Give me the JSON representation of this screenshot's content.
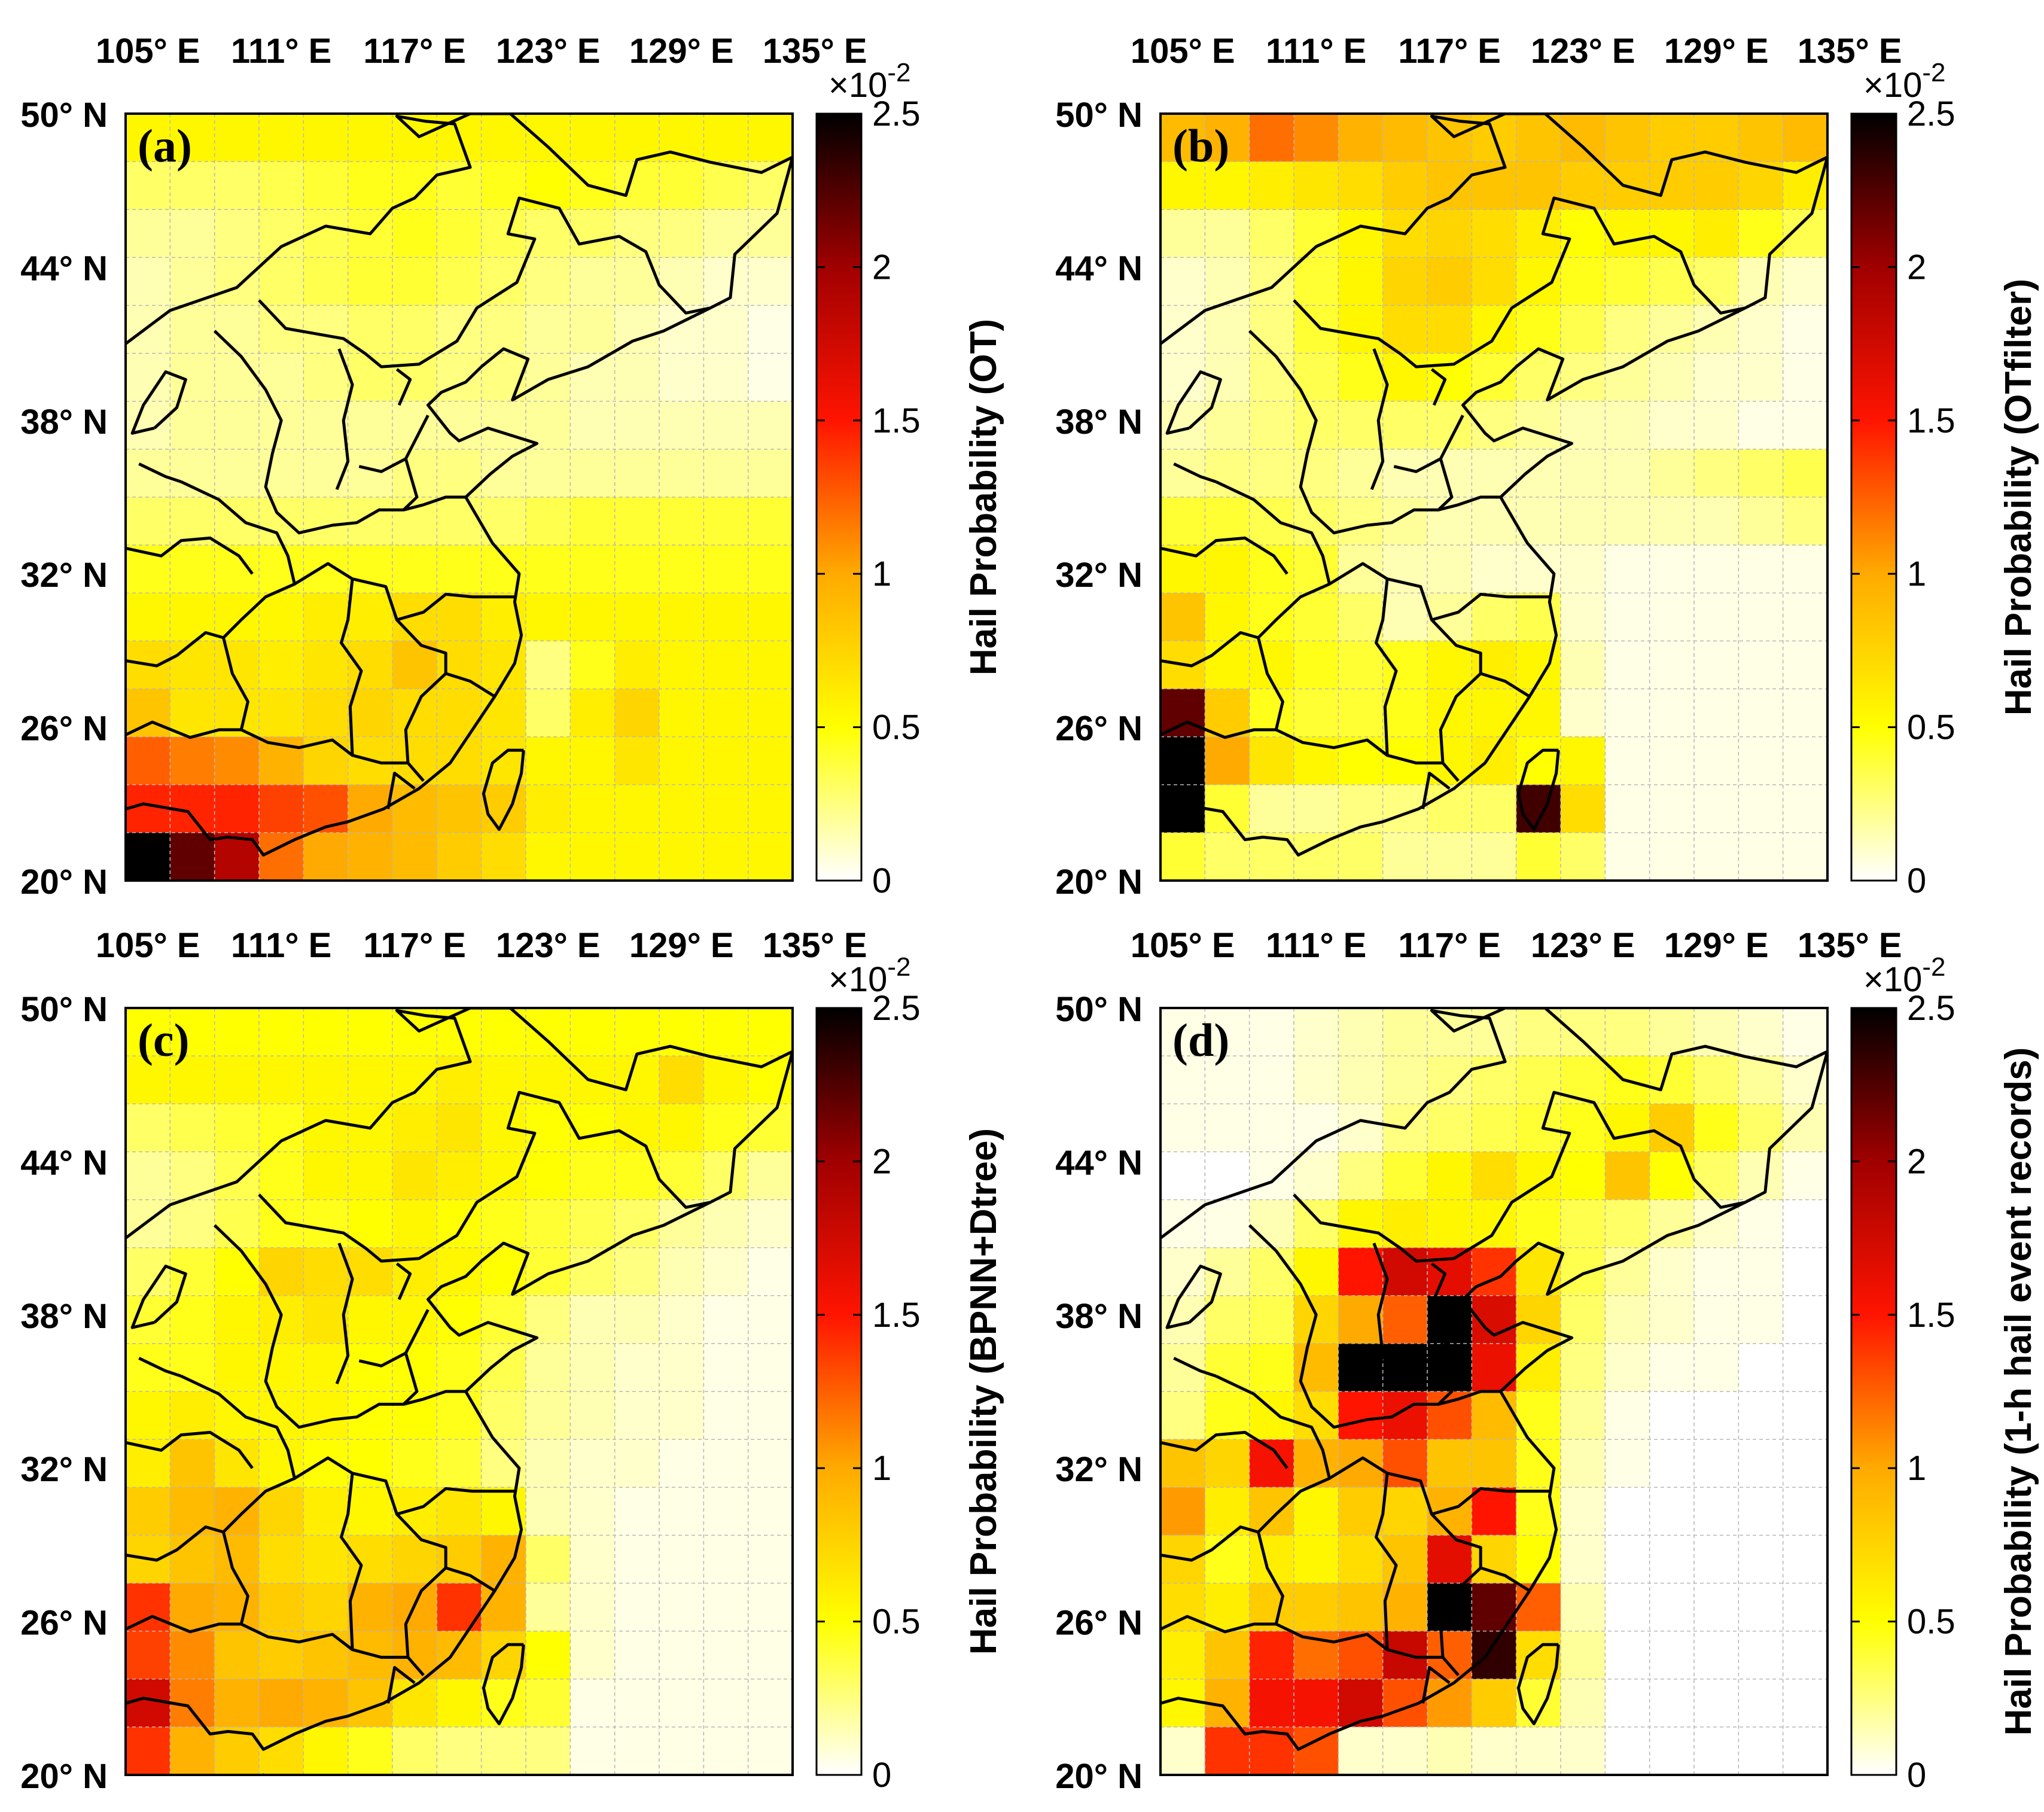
{
  "figure": {
    "colorbar_exponent": "×10",
    "colorbar_exponent_power": "-2"
  },
  "chart_data": [
    {
      "type": "heatmap",
      "panel_label": "(a)",
      "colorbar_label": "Hail Probability (OT)",
      "x_ticks": [
        "105° E",
        "111° E",
        "117° E",
        "123° E",
        "129° E",
        "135° E"
      ],
      "y_ticks": [
        "50° N",
        "44° N",
        "38° N",
        "32° N",
        "26° N",
        "20° N"
      ],
      "lon_range": [
        104,
        134
      ],
      "lat_range": [
        20,
        50
      ],
      "colorbar_ticks": [
        "0",
        "0.5",
        "1",
        "1.5",
        "2",
        "2.5"
      ],
      "clim": [
        0,
        2.5
      ],
      "unit": "×10^-2",
      "grid": [
        [
          0.55,
          0.55,
          0.55,
          0.55,
          0.55,
          0.55,
          0.55,
          0.55,
          0.55,
          0.55,
          0.55,
          0.55,
          0.55,
          0.55,
          0.55
        ],
        [
          0.3,
          0.3,
          0.3,
          0.35,
          0.4,
          0.45,
          0.45,
          0.4,
          0.45,
          0.5,
          0.45,
          0.4,
          0.4,
          0.35,
          0.3
        ],
        [
          0.2,
          0.2,
          0.25,
          0.3,
          0.35,
          0.4,
          0.45,
          0.4,
          0.35,
          0.3,
          0.3,
          0.25,
          0.25,
          0.2,
          0.2
        ],
        [
          0.15,
          0.2,
          0.25,
          0.3,
          0.35,
          0.4,
          0.4,
          0.35,
          0.3,
          0.25,
          0.2,
          0.2,
          0.15,
          0.1,
          0.1
        ],
        [
          0.15,
          0.2,
          0.2,
          0.25,
          0.25,
          0.3,
          0.3,
          0.25,
          0.25,
          0.2,
          0.2,
          0.15,
          0.1,
          0.1,
          0.05
        ],
        [
          0.15,
          0.2,
          0.2,
          0.2,
          0.25,
          0.3,
          0.3,
          0.25,
          0.25,
          0.2,
          0.15,
          0.15,
          0.1,
          0.1,
          0.05
        ],
        [
          0.15,
          0.2,
          0.2,
          0.2,
          0.2,
          0.2,
          0.2,
          0.2,
          0.2,
          0.2,
          0.15,
          0.15,
          0.15,
          0.15,
          0.15
        ],
        [
          0.2,
          0.2,
          0.2,
          0.2,
          0.2,
          0.2,
          0.25,
          0.25,
          0.2,
          0.2,
          0.2,
          0.2,
          0.2,
          0.2,
          0.2
        ],
        [
          0.3,
          0.3,
          0.3,
          0.3,
          0.3,
          0.3,
          0.3,
          0.3,
          0.3,
          0.35,
          0.4,
          0.4,
          0.4,
          0.4,
          0.4
        ],
        [
          0.45,
          0.45,
          0.45,
          0.45,
          0.45,
          0.45,
          0.45,
          0.45,
          0.45,
          0.45,
          0.45,
          0.45,
          0.45,
          0.45,
          0.45
        ],
        [
          0.55,
          0.55,
          0.55,
          0.55,
          0.6,
          0.6,
          0.7,
          0.7,
          0.6,
          0.55,
          0.55,
          0.55,
          0.55,
          0.55,
          0.55
        ],
        [
          0.7,
          0.65,
          0.65,
          0.6,
          0.65,
          0.7,
          0.85,
          0.7,
          0.65,
          0.25,
          0.45,
          0.6,
          0.55,
          0.55,
          0.55
        ],
        [
          0.85,
          0.65,
          0.65,
          0.65,
          0.7,
          0.75,
          0.7,
          0.7,
          0.65,
          0.3,
          0.6,
          0.75,
          0.55,
          0.55,
          0.55
        ],
        [
          1.25,
          1.15,
          1.1,
          0.95,
          0.75,
          0.7,
          0.7,
          0.7,
          0.65,
          0.55,
          0.55,
          0.65,
          0.55,
          0.55,
          0.55
        ],
        [
          1.45,
          1.45,
          1.45,
          1.35,
          1.3,
          1.0,
          0.9,
          0.85,
          0.8,
          0.6,
          0.55,
          0.55,
          0.55,
          0.55,
          0.55
        ],
        [
          2.5,
          2.2,
          1.9,
          1.2,
          1.0,
          0.95,
          0.9,
          0.8,
          0.7,
          0.55,
          0.55,
          0.55,
          0.55,
          0.55,
          0.55
        ]
      ]
    },
    {
      "type": "heatmap",
      "panel_label": "(b)",
      "colorbar_label": "Hail Probability (OTfilter)",
      "x_ticks": [
        "105° E",
        "111° E",
        "117° E",
        "123° E",
        "129° E",
        "135° E"
      ],
      "y_ticks": [
        "50° N",
        "44° N",
        "38° N",
        "32° N",
        "26° N",
        "20° N"
      ],
      "lon_range": [
        104,
        134
      ],
      "lat_range": [
        20,
        50
      ],
      "colorbar_ticks": [
        "0",
        "0.5",
        "1",
        "1.5",
        "2",
        "2.5"
      ],
      "clim": [
        0,
        2.5
      ],
      "unit": "×10^-2",
      "grid": [
        [
          0.9,
          0.95,
          1.2,
          1.1,
          0.95,
          0.9,
          0.85,
          0.8,
          0.85,
          0.9,
          0.85,
          0.8,
          0.8,
          0.85,
          0.9
        ],
        [
          0.55,
          0.55,
          0.6,
          0.65,
          0.7,
          0.8,
          0.85,
          0.85,
          0.85,
          0.8,
          0.8,
          0.8,
          0.8,
          0.75,
          0.6
        ],
        [
          0.2,
          0.2,
          0.3,
          0.4,
          0.55,
          0.7,
          0.75,
          0.7,
          0.6,
          0.5,
          0.55,
          0.55,
          0.6,
          0.45,
          0.35
        ],
        [
          0.1,
          0.15,
          0.25,
          0.4,
          0.55,
          0.75,
          0.8,
          0.7,
          0.55,
          0.45,
          0.4,
          0.35,
          0.3,
          0.15,
          0.1
        ],
        [
          0.1,
          0.15,
          0.25,
          0.4,
          0.55,
          0.7,
          0.7,
          0.55,
          0.45,
          0.35,
          0.25,
          0.2,
          0.15,
          0.1,
          0.05
        ],
        [
          0.1,
          0.15,
          0.25,
          0.35,
          0.45,
          0.55,
          0.5,
          0.4,
          0.3,
          0.25,
          0.2,
          0.15,
          0.1,
          0.1,
          0.05
        ],
        [
          0.15,
          0.2,
          0.25,
          0.3,
          0.3,
          0.3,
          0.3,
          0.25,
          0.2,
          0.15,
          0.15,
          0.1,
          0.1,
          0.05,
          0.05
        ],
        [
          0.2,
          0.25,
          0.25,
          0.25,
          0.2,
          0.15,
          0.15,
          0.15,
          0.15,
          0.15,
          0.15,
          0.2,
          0.25,
          0.3,
          0.35
        ],
        [
          0.4,
          0.4,
          0.35,
          0.3,
          0.25,
          0.2,
          0.15,
          0.15,
          0.15,
          0.15,
          0.15,
          0.15,
          0.15,
          0.2,
          0.25
        ],
        [
          0.55,
          0.55,
          0.45,
          0.4,
          0.2,
          0.15,
          0.15,
          0.1,
          0.1,
          0.1,
          0.05,
          0.05,
          0.05,
          0.05,
          0.05
        ],
        [
          0.85,
          0.55,
          0.45,
          0.4,
          0.3,
          0.15,
          0.2,
          0.3,
          0.35,
          0.1,
          0.05,
          0.05,
          0.05,
          0.05,
          0.05
        ],
        [
          0.7,
          0.55,
          0.55,
          0.45,
          0.4,
          0.45,
          0.55,
          0.6,
          0.55,
          0.15,
          0.05,
          0.05,
          0.05,
          0.05,
          0.05
        ],
        [
          2.2,
          0.8,
          0.45,
          0.4,
          0.4,
          0.45,
          0.55,
          0.55,
          0.55,
          0.1,
          0.05,
          0.05,
          0.05,
          0.05,
          0.05
        ],
        [
          2.5,
          1.0,
          0.65,
          0.55,
          0.5,
          0.5,
          0.55,
          0.6,
          0.5,
          0.55,
          0.05,
          0.05,
          0.05,
          0.05,
          0.05
        ],
        [
          2.5,
          0.4,
          0.2,
          0.2,
          0.25,
          0.25,
          0.3,
          0.3,
          2.3,
          0.7,
          0.05,
          0.05,
          0.05,
          0.05,
          0.05
        ],
        [
          0.4,
          0.3,
          0.3,
          0.3,
          0.3,
          0.2,
          0.2,
          0.2,
          0.4,
          0.3,
          0.05,
          0.05,
          0.05,
          0.05,
          0.05
        ]
      ]
    },
    {
      "type": "heatmap",
      "panel_label": "(c)",
      "colorbar_label": "Hail Probability (BPNN+Dtree)",
      "x_ticks": [
        "105° E",
        "111° E",
        "117° E",
        "123° E",
        "129° E",
        "135° E"
      ],
      "y_ticks": [
        "50° N",
        "44° N",
        "38° N",
        "32° N",
        "26° N",
        "20° N"
      ],
      "lon_range": [
        104,
        134
      ],
      "lat_range": [
        20,
        50
      ],
      "colorbar_ticks": [
        "0",
        "0.5",
        "1",
        "1.5",
        "2",
        "2.5"
      ],
      "clim": [
        0,
        2.5
      ],
      "unit": "×10^-2",
      "grid": [
        [
          0.5,
          0.5,
          0.5,
          0.5,
          0.5,
          0.5,
          0.5,
          0.5,
          0.5,
          0.5,
          0.5,
          0.5,
          0.5,
          0.5,
          0.5
        ],
        [
          0.55,
          0.55,
          0.55,
          0.55,
          0.55,
          0.55,
          0.55,
          0.6,
          0.55,
          0.55,
          0.55,
          0.55,
          0.7,
          0.55,
          0.5
        ],
        [
          0.3,
          0.35,
          0.4,
          0.45,
          0.55,
          0.55,
          0.6,
          0.65,
          0.55,
          0.5,
          0.5,
          0.55,
          0.55,
          0.45,
          0.4
        ],
        [
          0.2,
          0.25,
          0.35,
          0.45,
          0.55,
          0.55,
          0.65,
          0.6,
          0.55,
          0.5,
          0.45,
          0.45,
          0.4,
          0.3,
          0.2
        ],
        [
          0.2,
          0.25,
          0.35,
          0.45,
          0.45,
          0.5,
          0.55,
          0.5,
          0.45,
          0.4,
          0.35,
          0.3,
          0.2,
          0.15,
          0.1
        ],
        [
          0.3,
          0.4,
          0.5,
          0.75,
          0.7,
          0.7,
          0.6,
          0.55,
          0.5,
          0.4,
          0.3,
          0.25,
          0.15,
          0.1,
          0.05
        ],
        [
          0.4,
          0.45,
          0.55,
          0.6,
          0.65,
          0.55,
          0.55,
          0.5,
          0.4,
          0.25,
          0.15,
          0.15,
          0.1,
          0.05,
          0.05
        ],
        [
          0.45,
          0.45,
          0.55,
          0.55,
          0.55,
          0.5,
          0.5,
          0.45,
          0.35,
          0.2,
          0.15,
          0.1,
          0.1,
          0.05,
          0.05
        ],
        [
          0.55,
          0.6,
          0.55,
          0.55,
          0.55,
          0.5,
          0.5,
          0.45,
          0.3,
          0.2,
          0.15,
          0.1,
          0.1,
          0.05,
          0.05
        ],
        [
          0.6,
          0.85,
          0.65,
          0.55,
          0.5,
          0.5,
          0.45,
          0.4,
          0.25,
          0.15,
          0.1,
          0.1,
          0.05,
          0.05,
          0.05
        ],
        [
          0.8,
          0.9,
          0.95,
          0.75,
          0.6,
          0.55,
          0.6,
          0.65,
          0.55,
          0.15,
          0.1,
          0.05,
          0.05,
          0.05,
          0.05
        ],
        [
          0.75,
          0.85,
          0.9,
          0.7,
          0.65,
          0.7,
          0.75,
          0.8,
          0.95,
          0.3,
          0.1,
          0.05,
          0.05,
          0.05,
          0.05
        ],
        [
          1.4,
          1.0,
          0.95,
          0.8,
          0.75,
          0.95,
          1.0,
          1.4,
          0.95,
          0.2,
          0.1,
          0.05,
          0.05,
          0.05,
          0.05
        ],
        [
          1.35,
          1.1,
          0.85,
          0.8,
          0.85,
          0.9,
          0.95,
          0.9,
          0.75,
          0.5,
          0.1,
          0.05,
          0.05,
          0.05,
          0.05
        ],
        [
          1.75,
          1.15,
          0.95,
          1.0,
          0.95,
          0.85,
          0.65,
          0.55,
          0.45,
          0.4,
          0.05,
          0.05,
          0.05,
          0.05,
          0.05
        ],
        [
          1.4,
          0.95,
          0.8,
          0.7,
          0.55,
          0.45,
          0.3,
          0.25,
          0.25,
          0.25,
          0.05,
          0.05,
          0.05,
          0.05,
          0.05
        ]
      ]
    },
    {
      "type": "heatmap",
      "panel_label": "(d)",
      "colorbar_label": "Hail Probability (1-h hail event records)",
      "x_ticks": [
        "105° E",
        "111° E",
        "117° E",
        "123° E",
        "129° E",
        "135° E"
      ],
      "y_ticks": [
        "50° N",
        "44° N",
        "38° N",
        "32° N",
        "26° N",
        "20° N"
      ],
      "lon_range": [
        104,
        134
      ],
      "lat_range": [
        20,
        50
      ],
      "colorbar_ticks": [
        "0",
        "0.5",
        "1",
        "1.5",
        "2",
        "2.5"
      ],
      "clim": [
        0,
        2.5
      ],
      "unit": "×10^-2",
      "grid": [
        [
          0.05,
          0.05,
          0.05,
          0.1,
          0.15,
          0.2,
          0.2,
          0.2,
          0.25,
          0.25,
          0.25,
          0.2,
          0.15,
          0.1,
          0.05
        ],
        [
          0.05,
          0.05,
          0.05,
          0.1,
          0.15,
          0.2,
          0.25,
          0.3,
          0.35,
          0.4,
          0.45,
          0.4,
          0.3,
          0.2,
          0.1
        ],
        [
          0.05,
          0.05,
          0.05,
          0.05,
          0.1,
          0.25,
          0.3,
          0.35,
          0.4,
          0.45,
          0.55,
          0.8,
          0.45,
          0.3,
          0.15
        ],
        [
          0.0,
          0.0,
          0.05,
          0.1,
          0.25,
          0.4,
          0.55,
          0.7,
          0.55,
          0.5,
          0.85,
          0.5,
          0.3,
          0.15,
          0.05
        ],
        [
          0.05,
          0.05,
          0.15,
          0.3,
          0.55,
          0.6,
          0.55,
          0.55,
          0.45,
          0.35,
          0.3,
          0.2,
          0.1,
          0.05,
          0.0
        ],
        [
          0.1,
          0.2,
          0.3,
          0.55,
          1.5,
          1.75,
          1.65,
          1.4,
          0.65,
          0.35,
          0.2,
          0.1,
          0.05,
          0.05,
          0.0
        ],
        [
          0.15,
          0.3,
          0.35,
          0.75,
          1.0,
          1.25,
          2.5,
          1.7,
          0.75,
          0.3,
          0.15,
          0.1,
          0.05,
          0.05,
          0.0
        ],
        [
          0.2,
          0.4,
          0.45,
          0.9,
          2.5,
          2.5,
          2.5,
          1.6,
          0.6,
          0.25,
          0.1,
          0.05,
          0.05,
          0.0,
          0.0
        ],
        [
          0.25,
          0.45,
          0.55,
          0.7,
          1.5,
          1.6,
          1.3,
          0.9,
          0.45,
          0.2,
          0.05,
          0.0,
          0.0,
          0.0,
          0.0
        ],
        [
          0.85,
          0.75,
          1.55,
          0.95,
          1.0,
          1.3,
          0.85,
          0.85,
          0.45,
          0.15,
          0.05,
          0.0,
          0.0,
          0.0,
          0.0
        ],
        [
          1.05,
          0.6,
          0.85,
          0.55,
          0.8,
          0.75,
          0.95,
          1.5,
          0.45,
          0.1,
          0.0,
          0.0,
          0.0,
          0.0,
          0.0
        ],
        [
          0.75,
          0.45,
          0.6,
          0.55,
          0.7,
          0.85,
          1.65,
          0.75,
          0.5,
          0.1,
          0.0,
          0.0,
          0.0,
          0.0,
          0.0
        ],
        [
          0.7,
          0.6,
          0.8,
          0.8,
          0.85,
          0.95,
          2.5,
          2.2,
          1.25,
          0.15,
          0.0,
          0.0,
          0.0,
          0.0,
          0.0
        ],
        [
          0.6,
          0.85,
          1.45,
          1.2,
          1.3,
          1.8,
          1.25,
          2.35,
          0.7,
          0.2,
          0.0,
          0.0,
          0.0,
          0.0,
          0.0
        ],
        [
          0.55,
          0.95,
          1.55,
          1.55,
          1.75,
          1.3,
          1.05,
          0.8,
          0.4,
          0.15,
          0.0,
          0.0,
          0.0,
          0.0,
          0.0
        ],
        [
          0.1,
          1.4,
          1.4,
          1.3,
          0.1,
          0.1,
          0.15,
          0.1,
          0.1,
          0.1,
          0.0,
          0.0,
          0.0,
          0.0,
          0.0
        ]
      ]
    }
  ]
}
